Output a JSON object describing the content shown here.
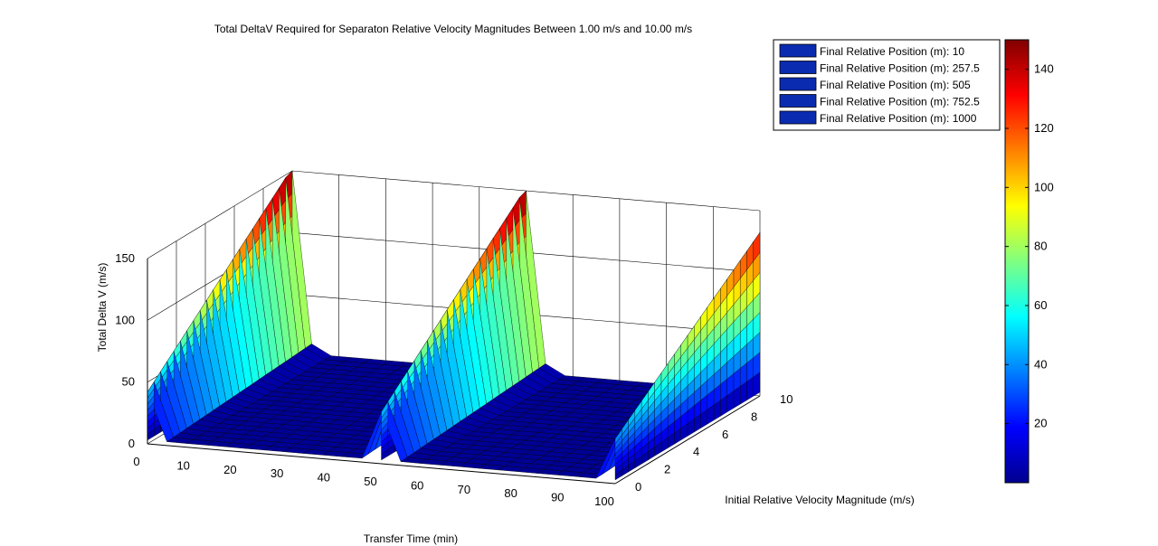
{
  "chart_data": {
    "type": "surface",
    "title": "Total DeltaV Required for Separaton Relative Velocity Magnitudes Between 1.00 m/s and 10.00 m/s",
    "xlabel": "Transfer Time (min)",
    "ylabel": "Initial Relative Velocity Magnitude (m/s)",
    "zlabel": "Total Delta V (m/s)",
    "xlim": [
      0,
      100
    ],
    "ylim": [
      0,
      10
    ],
    "zlim": [
      0,
      150
    ],
    "x_ticks": [
      0,
      10,
      20,
      30,
      40,
      50,
      60,
      70,
      80,
      90,
      100
    ],
    "y_ticks": [
      0,
      2,
      4,
      6,
      8,
      10
    ],
    "z_ticks": [
      0,
      50,
      100,
      150
    ],
    "grid": true,
    "legend_position": "top-right",
    "legend": [
      {
        "label": "Final Relative Position (m): 10",
        "color": "#0a2bb0"
      },
      {
        "label": "Final Relative Position (m): 257.5",
        "color": "#0a2bb0"
      },
      {
        "label": "Final Relative Position (m): 505",
        "color": "#0a2bb0"
      },
      {
        "label": "Final Relative Position (m): 752.5",
        "color": "#0a2bb0"
      },
      {
        "label": "Final Relative Position (m): 1000",
        "color": "#0a2bb0"
      }
    ],
    "colormap": "jet",
    "colorbar": {
      "min": 0,
      "max": 150,
      "ticks": [
        20,
        40,
        60,
        80,
        100,
        120,
        140
      ]
    },
    "surface_approximation": {
      "wall_transfer_times": [
        0,
        50,
        100
      ],
      "peak_delta_v": [
        150,
        150,
        130
      ],
      "floor_delta_v": 3
    }
  }
}
